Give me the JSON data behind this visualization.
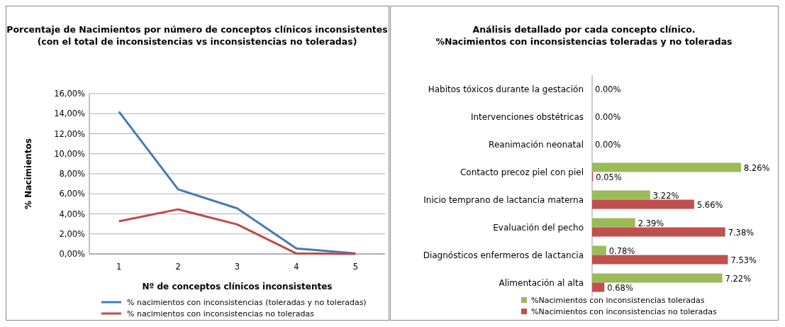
{
  "chart_data": [
    {
      "type": "line",
      "title": "Porcentaje de Nacimientos por número de conceptos clínicos inconsistentes\n(con el total de inconsistencias vs inconsistencias no toleradas)",
      "xlabel": "Nº de conceptos clínicos inconsistentes",
      "ylabel": "% Nacimientos",
      "categories": [
        "1",
        "2",
        "3",
        "4",
        "5"
      ],
      "series": [
        {
          "name": "% nacimientos con inconsistencias (toleradas y no toleradas)",
          "color": "#4a7ab5",
          "values": [
            14.2,
            6.45,
            4.55,
            0.55,
            0.05
          ]
        },
        {
          "name": "% nacimientos con inconsistencias no toleradas",
          "color": "#be4b48",
          "values": [
            3.25,
            4.45,
            2.95,
            0.05,
            0.0
          ]
        }
      ],
      "ylim": [
        0,
        16
      ],
      "yticks": [
        {
          "value": 0,
          "label": "0,00%"
        },
        {
          "value": 2,
          "label": "2,00%"
        },
        {
          "value": 4,
          "label": "4,00%"
        },
        {
          "value": 6,
          "label": "6,00%"
        },
        {
          "value": 8,
          "label": "8,00%"
        },
        {
          "value": 10,
          "label": "10,00%"
        },
        {
          "value": 12,
          "label": "12,00%"
        },
        {
          "value": 14,
          "label": "14,00%"
        },
        {
          "value": 16,
          "label": "16,00%"
        }
      ],
      "grid": "y",
      "legend": "bottom",
      "marker": "none",
      "line_style": "solid"
    },
    {
      "type": "bar",
      "orientation": "horizontal",
      "title": "Análisis detallado por cada concepto clínico.\n%Nacimientos con inconsistencias toleradas y no toleradas",
      "categories": [
        "Habitos tóxicos durante la gestación",
        "Intervenciones obstétricas",
        "Reanimación neonatal",
        "Contacto precoz piel con piel",
        "Inicio temprano de lactancia materna",
        "Evaluación del pecho",
        "Diagnósticos enfermeros de lactancia",
        "Alimentación al alta"
      ],
      "series": [
        {
          "name": "%Nacimientos con inconsistencias toleradas",
          "color": "#9bbb59",
          "values": [
            0,
            0,
            0,
            8.26,
            3.22,
            2.39,
            0.78,
            7.22
          ],
          "value_labels": [
            "0.00%",
            "0.00%",
            "0.00%",
            "8.26%",
            "3.22%",
            "2.39%",
            "0.78%",
            "7.22%"
          ]
        },
        {
          "name": "%Nacimientos con inconsistencias no toleradas",
          "color": "#c0504d",
          "values": [
            0,
            0,
            0,
            0.05,
            5.66,
            7.38,
            7.53,
            0.68
          ],
          "value_labels": [
            null,
            null,
            null,
            "0.05%",
            "5.66%",
            "7.38%",
            "7.53%",
            "0.68%"
          ]
        }
      ],
      "legend": "bottom"
    }
  ]
}
